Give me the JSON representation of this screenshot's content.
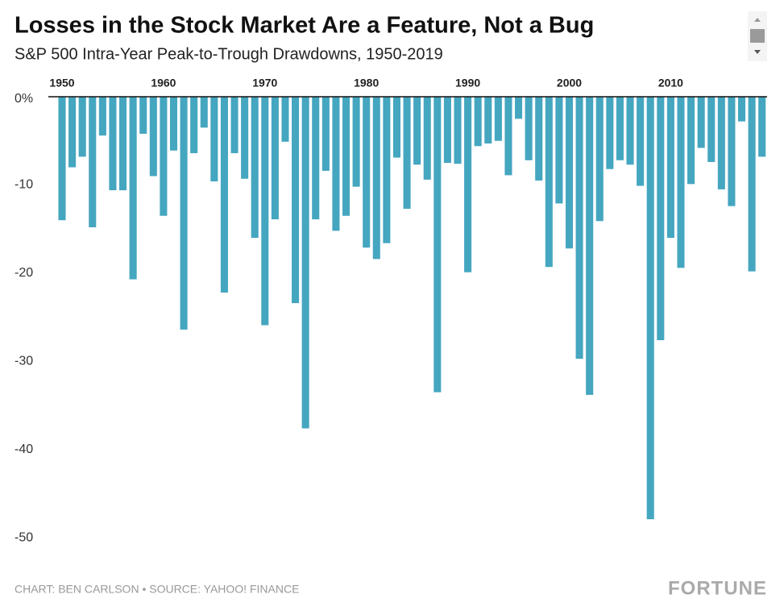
{
  "chart_data": {
    "type": "bar",
    "title": "Losses in the Stock Market Are a Feature, Not a Bug",
    "subtitle": "S&P 500 Intra-Year Peak-to-Trough Drawdowns, 1950-2019",
    "source": "CHART: BEN CARLSON • SOURCE: YAHOO! FINANCE",
    "logo": "FORTUNE",
    "color": "#45a6c0",
    "x": [
      1950,
      1951,
      1952,
      1953,
      1954,
      1955,
      1956,
      1957,
      1958,
      1959,
      1960,
      1961,
      1962,
      1963,
      1964,
      1965,
      1966,
      1967,
      1968,
      1969,
      1970,
      1971,
      1972,
      1973,
      1974,
      1975,
      1976,
      1977,
      1978,
      1979,
      1980,
      1981,
      1982,
      1983,
      1984,
      1985,
      1986,
      1987,
      1988,
      1989,
      1990,
      1991,
      1992,
      1993,
      1994,
      1995,
      1996,
      1997,
      1998,
      1999,
      2000,
      2001,
      2002,
      2003,
      2004,
      2005,
      2006,
      2007,
      2008,
      2009,
      2010,
      2011,
      2012,
      2013,
      2014,
      2015,
      2016,
      2017,
      2018,
      2019
    ],
    "values": [
      -14.0,
      -8.0,
      -6.8,
      -14.8,
      -4.4,
      -10.6,
      -10.6,
      -20.7,
      -4.2,
      -9.0,
      -13.5,
      -6.1,
      -26.4,
      -6.4,
      -3.5,
      -9.6,
      -22.2,
      -6.4,
      -9.3,
      -16.0,
      -25.9,
      -13.9,
      -5.1,
      -23.4,
      -37.6,
      -13.9,
      -8.4,
      -15.2,
      -13.5,
      -10.2,
      -17.1,
      -18.4,
      -16.6,
      -6.9,
      -12.7,
      -7.7,
      -9.4,
      -33.5,
      -7.5,
      -7.6,
      -19.9,
      -5.6,
      -5.3,
      -5.0,
      -8.9,
      -2.5,
      -7.2,
      -9.5,
      -19.3,
      -12.1,
      -17.2,
      -29.7,
      -33.8,
      -14.1,
      -8.2,
      -7.2,
      -7.7,
      -10.1,
      -47.9,
      -27.6,
      -16.0,
      -19.4,
      -9.9,
      -5.8,
      -7.4,
      -10.5,
      -12.4,
      -2.8,
      -19.8,
      -6.8
    ],
    "xlim": [
      1948.65,
      2019.5
    ],
    "xticks": [
      1950,
      1960,
      1970,
      1980,
      1990,
      2000,
      2010
    ],
    "ylim": [
      -52,
      0
    ],
    "yticks": [
      {
        "value": 0,
        "label": "0%"
      },
      -10,
      -20,
      -30,
      -40,
      -50
    ]
  }
}
